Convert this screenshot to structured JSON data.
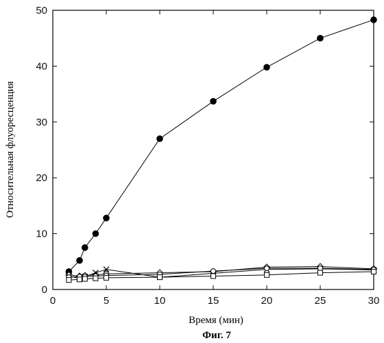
{
  "chart_data": {
    "type": "line",
    "title": "",
    "caption": "Фиг. 7",
    "xlabel": "Время (мин)",
    "ylabel": "Относительная флуоресценция",
    "xlim": [
      0,
      30
    ],
    "ylim": [
      0,
      50
    ],
    "xticks": [
      0,
      5,
      10,
      15,
      20,
      25,
      30
    ],
    "yticks": [
      0,
      10,
      20,
      30,
      40,
      50
    ],
    "grid": false,
    "series": [
      {
        "marker": "filled-circle",
        "x": [
          1.5,
          2.5,
          3,
          4,
          5,
          10,
          15,
          20,
          25,
          30
        ],
        "y": [
          3.2,
          5.2,
          7.5,
          10,
          12.8,
          27,
          33.7,
          39.8,
          45,
          48.3
        ]
      },
      {
        "marker": "diamond",
        "x": [
          1.5,
          2.5,
          3,
          4,
          5,
          10,
          15,
          20,
          25,
          30
        ],
        "y": [
          2.6,
          2.4,
          2.5,
          2.6,
          2.8,
          3,
          3.2,
          4,
          4.1,
          3.7
        ]
      },
      {
        "marker": "cross",
        "x": [
          1.5,
          2.5,
          3,
          4,
          5,
          10,
          15,
          20,
          25,
          30
        ],
        "y": [
          2.4,
          2,
          2.3,
          3,
          3.6,
          2.2,
          2.9,
          3.6,
          3.7,
          3.5
        ]
      },
      {
        "marker": "circle",
        "x": [
          1.5,
          2.5,
          3,
          4,
          5,
          10,
          15,
          20,
          25,
          30
        ],
        "y": [
          2.2,
          2.3,
          2.3,
          2.4,
          2.5,
          2.7,
          3.3,
          3.8,
          3.8,
          3.6
        ]
      },
      {
        "marker": "square",
        "x": [
          1.5,
          2.5,
          3,
          4,
          5,
          10,
          15,
          20,
          25,
          30
        ],
        "y": [
          1.7,
          1.8,
          1.9,
          2,
          2.1,
          2.2,
          2.4,
          2.6,
          3,
          3.2
        ]
      }
    ]
  }
}
